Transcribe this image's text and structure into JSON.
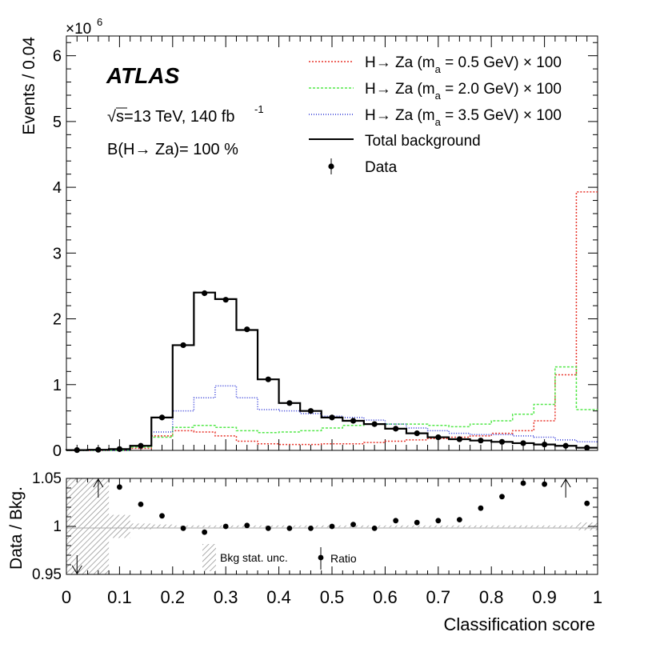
{
  "chart_data": {
    "type": "histogram",
    "x": {
      "label": "Classification score",
      "range": [
        0,
        1
      ],
      "bin_width": 0.04,
      "ticks": [
        0,
        0.1,
        0.2,
        0.3,
        0.4,
        0.5,
        0.6,
        0.7,
        0.8,
        0.9,
        1
      ],
      "tick_labels": [
        "0",
        "0.1",
        "0.2",
        "0.3",
        "0.4",
        "0.5",
        "0.6",
        "0.7",
        "0.8",
        "0.9",
        "1"
      ]
    },
    "bin_edges": [
      0,
      0.04,
      0.08,
      0.12,
      0.16,
      0.2,
      0.24,
      0.28,
      0.32,
      0.36,
      0.4,
      0.44,
      0.48,
      0.52,
      0.56,
      0.6,
      0.64,
      0.68,
      0.72,
      0.76,
      0.8,
      0.84,
      0.88,
      0.92,
      0.96,
      1.0
    ],
    "main": {
      "ylabel": "Events / 0.04",
      "yscale_label": "×10",
      "yscale_exp": "6",
      "ylim": [
        0,
        6.3
      ],
      "yticks": [
        0,
        1,
        2,
        3,
        4,
        5,
        6
      ],
      "ytick_labels": [
        "0",
        "1",
        "2",
        "3",
        "4",
        "5",
        "6"
      ]
    },
    "series": [
      {
        "name": "signal_05",
        "label": "H→ Za (m",
        "label_sub": "a",
        "label_tail": " = 0.5 GeV) × 100",
        "color": "#e8342a",
        "dash": "2,2",
        "values": [
          0,
          0,
          0,
          0.03,
          0.22,
          0.3,
          0.28,
          0.22,
          0.14,
          0.1,
          0.09,
          0.09,
          0.1,
          0.1,
          0.12,
          0.14,
          0.16,
          0.18,
          0.2,
          0.22,
          0.26,
          0.3,
          0.45,
          1.15,
          3.93
        ]
      },
      {
        "name": "signal_20",
        "label": "H→ Za (m",
        "label_sub": "a",
        "label_tail": " = 2.0 GeV) × 100",
        "color": "#53e84a",
        "dash": "3,2",
        "values": [
          0,
          0,
          0,
          0.05,
          0.2,
          0.35,
          0.38,
          0.35,
          0.3,
          0.27,
          0.28,
          0.3,
          0.34,
          0.38,
          0.4,
          0.4,
          0.4,
          0.38,
          0.36,
          0.4,
          0.45,
          0.55,
          0.7,
          1.27,
          0.62
        ]
      },
      {
        "name": "signal_35",
        "label": "H→ Za (m",
        "label_sub": "a",
        "label_tail": " = 3.5 GeV) × 100",
        "color": "#2a33d6",
        "dash": "1,2",
        "values": [
          0,
          0,
          0,
          0.07,
          0.28,
          0.6,
          0.8,
          0.98,
          0.8,
          0.62,
          0.6,
          0.56,
          0.52,
          0.5,
          0.46,
          0.4,
          0.34,
          0.3,
          0.26,
          0.24,
          0.24,
          0.22,
          0.2,
          0.16,
          0.13
        ]
      },
      {
        "name": "background",
        "label": "Total background",
        "color": "#000000",
        "dash": "none",
        "values": [
          0.005,
          0.01,
          0.02,
          0.07,
          0.5,
          1.6,
          2.4,
          2.3,
          1.83,
          1.08,
          0.72,
          0.6,
          0.5,
          0.45,
          0.4,
          0.33,
          0.26,
          0.2,
          0.17,
          0.15,
          0.13,
          0.11,
          0.09,
          0.07,
          0.04
        ]
      }
    ],
    "data_points": {
      "label": "Data",
      "x": [
        0.02,
        0.06,
        0.1,
        0.14,
        0.18,
        0.22,
        0.26,
        0.3,
        0.34,
        0.38,
        0.42,
        0.46,
        0.5,
        0.54,
        0.58,
        0.62,
        0.66,
        0.7,
        0.74,
        0.78,
        0.82,
        0.86,
        0.9,
        0.94,
        0.98
      ],
      "y": [
        0.005,
        0.01,
        0.02,
        0.07,
        0.5,
        1.6,
        2.39,
        2.29,
        1.84,
        1.08,
        0.72,
        0.6,
        0.5,
        0.45,
        0.4,
        0.33,
        0.26,
        0.2,
        0.17,
        0.15,
        0.13,
        0.11,
        0.09,
        0.07,
        0.04
      ]
    },
    "annotations": {
      "experiment": "ATLAS",
      "energy_lumi": "s=13 TeV, 140 fb",
      "lumi_exp": "-1",
      "br": "B(H→ Za)= 100 %"
    },
    "ratio": {
      "ylabel": "Data / Bkg.",
      "ylim": [
        0.95,
        1.05
      ],
      "yticks": [
        0.95,
        1,
        1.05
      ],
      "ytick_labels": [
        "0.95",
        "1",
        "1.05"
      ],
      "x": [
        0.1,
        0.14,
        0.18,
        0.22,
        0.26,
        0.3,
        0.34,
        0.38,
        0.42,
        0.46,
        0.5,
        0.54,
        0.58,
        0.62,
        0.66,
        0.7,
        0.74,
        0.78,
        0.82,
        0.86,
        0.9,
        0.98
      ],
      "y": [
        1.041,
        1.023,
        1.011,
        0.998,
        0.994,
        1.0,
        1.001,
        0.998,
        0.998,
        0.998,
        1.0,
        1.002,
        0.998,
        1.006,
        1.004,
        1.006,
        1.007,
        1.019,
        1.031,
        1.045,
        1.044,
        1.024
      ],
      "arrows": [
        {
          "x": 0.02,
          "direction": "down"
        },
        {
          "x": 0.06,
          "direction": "up"
        },
        {
          "x": 0.94,
          "direction": "up"
        }
      ],
      "unc": [
        0.05,
        0.05,
        0.012,
        0.003,
        0.002,
        0.001,
        0.001,
        0.001,
        0.001,
        0.001,
        0.001,
        0.001,
        0.001,
        0.001,
        0.001,
        0.001,
        0.001,
        0.001,
        0.001,
        0.001,
        0.001,
        0.001,
        0.001,
        0.001,
        0.004
      ],
      "legend_unc": "Bkg stat. unc.",
      "legend_ratio": "Ratio"
    }
  }
}
